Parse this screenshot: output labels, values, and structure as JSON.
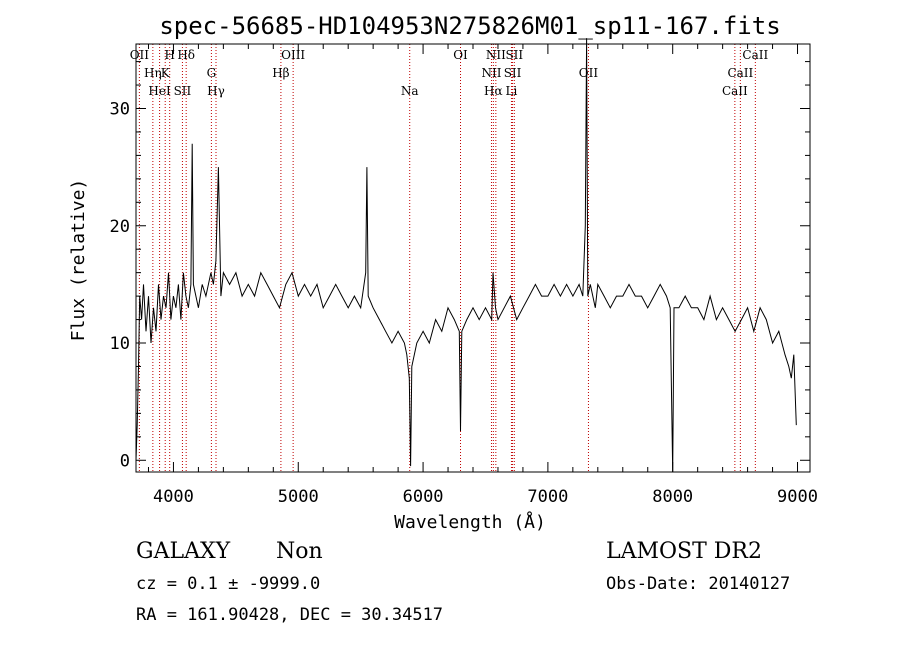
{
  "chart_data": {
    "type": "line",
    "title": "spec-56685-HD104953N275826M01_sp11-167.fits",
    "xlabel": "Wavelength (Å)",
    "ylabel": "Flux (relative)",
    "xlim": [
      3700,
      9100
    ],
    "ylim": [
      -1,
      35.5
    ],
    "x_ticks": [
      4000,
      5000,
      6000,
      7000,
      8000,
      9000
    ],
    "y_ticks": [
      0,
      10,
      20,
      30
    ],
    "grid": false,
    "series": [
      {
        "x": [
          3700,
          3710,
          3720,
          3730,
          3745,
          3760,
          3780,
          3800,
          3820,
          3840,
          3860,
          3880,
          3900,
          3920,
          3940,
          3960,
          3980,
          4000,
          4020,
          4040,
          4060,
          4080,
          4100,
          4120,
          4140,
          4150,
          4160,
          4180,
          4200,
          4230,
          4260,
          4300,
          4320,
          4340,
          4360,
          4380,
          4400,
          4450,
          4500,
          4550,
          4600,
          4650,
          4700,
          4750,
          4800,
          4850,
          4900,
          4950,
          5000,
          5050,
          5100,
          5150,
          5200,
          5250,
          5300,
          5350,
          5400,
          5450,
          5500,
          5540,
          5550,
          5560,
          5600,
          5650,
          5700,
          5750,
          5800,
          5850,
          5870,
          5890,
          5900,
          5910,
          5950,
          6000,
          6050,
          6100,
          6150,
          6200,
          6250,
          6290,
          6300,
          6310,
          6350,
          6400,
          6450,
          6500,
          6550,
          6560,
          6580,
          6600,
          6650,
          6700,
          6750,
          6800,
          6850,
          6900,
          6950,
          7000,
          7050,
          7100,
          7150,
          7200,
          7250,
          7280,
          7300,
          7310,
          7320,
          7340,
          7360,
          7380,
          7400,
          7450,
          7500,
          7550,
          7600,
          7650,
          7700,
          7750,
          7800,
          7850,
          7900,
          7950,
          7980,
          8000,
          8010,
          8050,
          8100,
          8150,
          8200,
          8250,
          8300,
          8350,
          8400,
          8450,
          8500,
          8550,
          8600,
          8650,
          8700,
          8750,
          8800,
          8850,
          8900,
          8930,
          8950,
          8970,
          8990
        ],
        "y": [
          0,
          3,
          8,
          14,
          12,
          15,
          11,
          14,
          10,
          13,
          11,
          15,
          12,
          14,
          13,
          16,
          12,
          14,
          13,
          15,
          12,
          16,
          14,
          13,
          15,
          27,
          15,
          14,
          13,
          15,
          14,
          16,
          15,
          17,
          25,
          14,
          16,
          15,
          16,
          14,
          15,
          14,
          16,
          15,
          14,
          13,
          15,
          16,
          14,
          15,
          14,
          15,
          13,
          14,
          15,
          14,
          13,
          14,
          13,
          16,
          25,
          14,
          13,
          12,
          11,
          10,
          11,
          10,
          9,
          7,
          -0.5,
          8,
          10,
          11,
          10,
          12,
          11,
          13,
          12,
          11,
          2.5,
          11,
          12,
          13,
          12,
          13,
          12,
          16,
          13,
          12,
          13,
          14,
          12,
          13,
          14,
          15,
          14,
          14,
          15,
          14,
          15,
          14,
          15,
          14,
          20,
          36,
          14,
          15,
          14,
          13,
          15,
          14,
          13,
          14,
          14,
          15,
          14,
          14,
          13,
          14,
          15,
          14,
          13,
          -1,
          13,
          13,
          14,
          13,
          13,
          12,
          14,
          12,
          13,
          12,
          11,
          12,
          13,
          11,
          13,
          12,
          10,
          11,
          9,
          8,
          7,
          9,
          3
        ]
      }
    ],
    "annotations": [
      {
        "label": "OII",
        "x": 3727
      },
      {
        "label": "Hη",
        "x": 3835
      },
      {
        "label": "HeI",
        "x": 3889
      },
      {
        "label": "H",
        "x": 3970
      },
      {
        "label": "K",
        "x": 3934
      },
      {
        "label": "SII",
        "x": 4072
      },
      {
        "label": "Hδ",
        "x": 4102
      },
      {
        "label": "G",
        "x": 4304
      },
      {
        "label": "Hγ",
        "x": 4341
      },
      {
        "label": "OIII",
        "x": 4959
      },
      {
        "label": "Hβ",
        "x": 4861
      },
      {
        "label": "Na",
        "x": 5893
      },
      {
        "label": "OI",
        "x": 6300
      },
      {
        "label": "NII",
        "x": 6548
      },
      {
        "label": "Li",
        "x": 6708
      },
      {
        "label": "NII",
        "x": 6583
      },
      {
        "label": "SII",
        "x": 6717
      },
      {
        "label": "Hα",
        "x": 6563
      },
      {
        "label": "SII",
        "x": 6731
      },
      {
        "label": "OII",
        "x": 7325
      },
      {
        "label": "CaII",
        "x": 8498
      },
      {
        "label": "CaII",
        "x": 8662
      },
      {
        "label": "CaII",
        "x": 8542
      }
    ]
  },
  "info": {
    "class_label": "GALAXY",
    "subclass_label": "Non",
    "cz_line": "cz = 0.1 ± -9999.0",
    "coords_line": "RA = 161.90428, DEC =  30.34517",
    "survey": "LAMOST DR2",
    "obs_date": "Obs-Date: 20140127"
  }
}
